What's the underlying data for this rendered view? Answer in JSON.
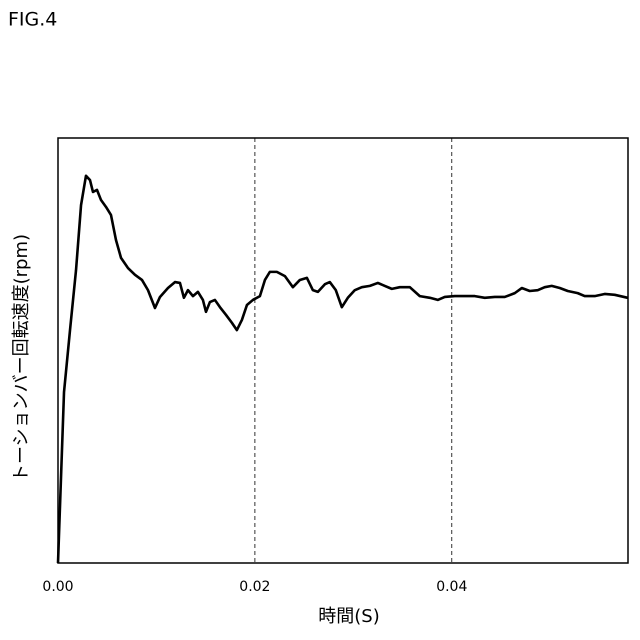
{
  "figure_label": "FIG.4",
  "chart_data": {
    "type": "line",
    "xlabel": "時間(S)",
    "ylabel": "トーションバー回転速度(rpm)",
    "color": "#000000",
    "x": [
      0,
      0.00061,
      0.00122,
      0.00183,
      0.00234,
      0.00284,
      0.00325,
      0.00355,
      0.00396,
      0.00437,
      0.00487,
      0.00538,
      0.00589,
      0.0064,
      0.00711,
      0.00782,
      0.00853,
      0.00914,
      0.00985,
      0.01036,
      0.01117,
      0.01188,
      0.01239,
      0.01279,
      0.0132,
      0.01371,
      0.01421,
      0.01472,
      0.01503,
      0.01543,
      0.01594,
      0.01645,
      0.01706,
      0.01767,
      0.01817,
      0.01868,
      0.01919,
      0.0198,
      0.02051,
      0.02102,
      0.02152,
      0.02223,
      0.02305,
      0.02386,
      0.02457,
      0.02528,
      0.02589,
      0.0264,
      0.02711,
      0.02761,
      0.02822,
      0.02883,
      0.02944,
      0.03015,
      0.03086,
      0.03168,
      0.03249,
      0.0332,
      0.03391,
      0.03472,
      0.03574,
      0.03675,
      0.03777,
      0.03858,
      0.03929,
      0.04031,
      0.04132,
      0.04234,
      0.04335,
      0.04437,
      0.04538,
      0.0464,
      0.04711,
      0.04792,
      0.04873,
      0.04944,
      0.05015,
      0.05097,
      0.05178,
      0.05279,
      0.0535,
      0.05452,
      0.05553,
      0.05655,
      0.05787
    ],
    "values": [
      0,
      40.2,
      54.8,
      68.9,
      84.2,
      91.1,
      90.1,
      87.3,
      87.8,
      85.4,
      83.8,
      81.9,
      76.0,
      71.8,
      69.4,
      67.8,
      66.6,
      64.2,
      60.0,
      62.6,
      64.7,
      66.1,
      65.9,
      62.4,
      64.2,
      62.8,
      63.8,
      61.9,
      59.1,
      61.4,
      61.9,
      60.2,
      58.4,
      56.5,
      54.8,
      57.2,
      60.7,
      61.9,
      62.8,
      66.6,
      68.5,
      68.5,
      67.5,
      64.9,
      66.6,
      67.1,
      64.2,
      63.8,
      65.6,
      66.1,
      64.2,
      60.2,
      62.4,
      64.2,
      64.9,
      65.2,
      65.9,
      65.2,
      64.5,
      64.9,
      64.9,
      62.8,
      62.4,
      61.9,
      62.6,
      62.8,
      62.8,
      62.8,
      62.4,
      62.6,
      62.6,
      63.5,
      64.7,
      64.0,
      64.2,
      64.9,
      65.2,
      64.7,
      64.0,
      63.5,
      62.8,
      62.8,
      63.3,
      63.1,
      62.4
    ],
    "xlim": [
      0,
      0.0579
    ],
    "ylim": [
      0,
      100
    ],
    "xticks": [
      {
        "value": 0,
        "label": "0.00"
      },
      {
        "value": 0.02,
        "label": "0.02"
      },
      {
        "value": 0.04,
        "label": "0.04"
      }
    ],
    "grid": true
  }
}
